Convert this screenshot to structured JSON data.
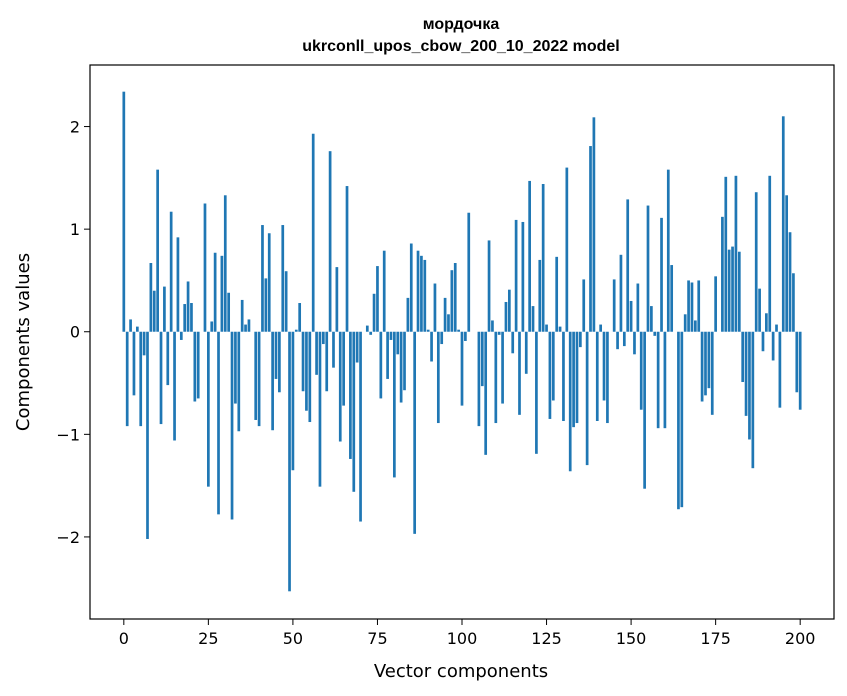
{
  "chart_data": {
    "type": "bar",
    "title": "мордочка",
    "subtitle": "ukrconll_upos_cbow_200_10_2022 model",
    "xlabel": "Vector components",
    "ylabel": "Components values",
    "xlim": [
      -10,
      210
    ],
    "ylim": [
      -2.8,
      2.6
    ],
    "xticks": [
      0,
      25,
      50,
      75,
      100,
      125,
      150,
      175,
      200
    ],
    "yticks": [
      -2,
      -1,
      0,
      1,
      2
    ],
    "xtick_labels": [
      "0",
      "25",
      "50",
      "75",
      "100",
      "125",
      "150",
      "175",
      "200"
    ],
    "ytick_labels": [
      "−2",
      "−1",
      "0",
      "1",
      "2"
    ],
    "grid": false,
    "bar_color": "#1f77b4",
    "values": [
      2.34,
      -0.92,
      0.12,
      -0.62,
      0.05,
      -0.92,
      -0.23,
      -2.02,
      0.67,
      0.4,
      1.58,
      -0.9,
      0.44,
      -0.52,
      1.17,
      -1.06,
      0.92,
      -0.08,
      0.27,
      0.49,
      0.28,
      -0.68,
      -0.65,
      0.0,
      1.25,
      -1.51,
      0.1,
      0.77,
      -1.78,
      0.74,
      1.33,
      0.38,
      -1.83,
      -0.7,
      -0.97,
      0.31,
      0.07,
      0.12,
      0.0,
      -0.86,
      -0.92,
      1.04,
      0.52,
      0.96,
      -0.96,
      -0.46,
      -0.59,
      1.04,
      0.59,
      -2.53,
      -1.35,
      0.02,
      0.28,
      -0.58,
      -0.77,
      -0.88,
      1.93,
      -0.42,
      -1.51,
      -0.12,
      -0.58,
      1.76,
      -0.35,
      0.63,
      -1.07,
      -0.72,
      1.42,
      -1.24,
      -1.56,
      -0.3,
      -1.85,
      0.0,
      0.06,
      -0.03,
      0.37,
      0.64,
      -0.65,
      0.79,
      -0.46,
      -0.08,
      -1.42,
      -0.22,
      -0.69,
      -0.57,
      0.33,
      0.86,
      -1.97,
      0.79,
      0.74,
      0.7,
      0.02,
      -0.29,
      0.47,
      -0.89,
      -0.12,
      0.33,
      0.17,
      0.6,
      0.67,
      0.02,
      -0.72,
      -0.09,
      1.16,
      0.0,
      0.0,
      -0.92,
      -0.53,
      -1.2,
      0.89,
      0.11,
      -0.89,
      -0.03,
      -0.7,
      0.29,
      0.41,
      -0.21,
      1.09,
      -0.81,
      1.07,
      -0.41,
      1.47,
      0.25,
      -1.19,
      0.7,
      1.44,
      0.07,
      -0.85,
      -0.67,
      0.73,
      0.05,
      -0.87,
      1.6,
      -1.36,
      -0.93,
      -0.89,
      -0.15,
      0.51,
      -1.3,
      1.81,
      2.09,
      -0.87,
      0.07,
      -0.67,
      -0.89,
      0.0,
      0.51,
      -0.17,
      0.75,
      -0.14,
      1.29,
      0.3,
      -0.22,
      0.47,
      -0.76,
      -1.53,
      1.23,
      0.25,
      -0.04,
      -0.94,
      1.11,
      -0.94,
      1.58,
      0.65,
      0.0,
      -1.73,
      -1.71,
      0.17,
      0.5,
      0.48,
      0.11,
      0.5,
      -0.68,
      -0.62,
      -0.55,
      -0.81,
      0.54,
      0.0,
      1.12,
      1.51,
      0.8,
      0.83,
      1.52,
      0.78,
      -0.49,
      -0.82,
      -1.05,
      -1.33,
      1.36,
      0.42,
      -0.19,
      0.18,
      1.52,
      -0.28,
      0.07,
      -0.74,
      2.1,
      1.33,
      0.97,
      0.57,
      -0.59,
      -0.76
    ]
  }
}
